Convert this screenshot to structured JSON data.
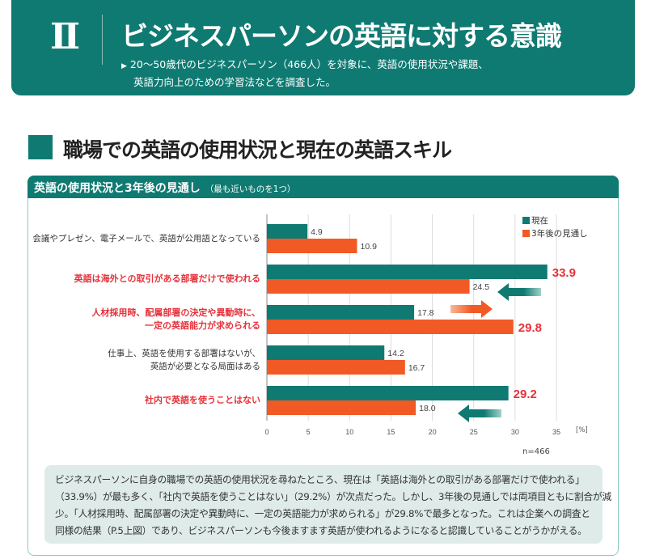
{
  "header": {
    "numeral": "Ⅱ",
    "title": "ビジネスパーソンの英語に対する意識",
    "subtitle_lines": [
      "20～50歳代のビジネスパーソン（466人）を対象に、英語の使用状況や課題、",
      "英語力向上のための学習法などを調査した。"
    ]
  },
  "section": {
    "title": "職場での英語の使用状況と現在の英語スキル"
  },
  "chart_box": {
    "title": "英語の使用状況と3年後の見通し",
    "note": "（最も近いものを1つ）"
  },
  "chart_data": {
    "type": "bar",
    "orientation": "horizontal",
    "categories": [
      {
        "lines": [
          "会議やプレゼン、電子メールで、英語が公用語となっている"
        ],
        "highlight": false
      },
      {
        "lines": [
          "英語は海外との取引がある部署だけで使われる"
        ],
        "highlight": true
      },
      {
        "lines": [
          "人材採用時、配属部署の決定や異動時に、",
          "一定の英語能力が求められる"
        ],
        "highlight": true
      },
      {
        "lines": [
          "仕事上、英語を使用する部署はないが、",
          "英語が必要となる局面はある"
        ],
        "highlight": false
      },
      {
        "lines": [
          "社内で英語を使うことはない"
        ],
        "highlight": true
      }
    ],
    "series": [
      {
        "name": "現在",
        "color": "#0f7a72",
        "values": [
          4.9,
          33.9,
          17.8,
          14.2,
          29.2
        ],
        "labels": [
          "4.9",
          "33.9",
          "17.8",
          "14.2",
          "29.2"
        ],
        "emphasized": [
          false,
          true,
          false,
          false,
          true
        ]
      },
      {
        "name": "3年後の見通し",
        "color": "#f15a24",
        "values": [
          10.9,
          24.5,
          29.8,
          16.7,
          18.0
        ],
        "labels": [
          "10.9",
          "24.5",
          "29.8",
          "16.7",
          "18.0"
        ],
        "emphasized": [
          false,
          false,
          true,
          false,
          false
        ]
      }
    ],
    "xlim": [
      0,
      35
    ],
    "xticks": [
      "0",
      "5",
      "10",
      "15",
      "20",
      "25",
      "30",
      "35"
    ],
    "xunit": "[%]",
    "grid": true,
    "legend": "top-right",
    "highlight_color": "#e5323b",
    "sample_size": "n=466"
  },
  "summary_lines": [
    "ビジネスパーソンに自身の職場での英語の使用状況を尋ねたところ、現在は「英語は海外との取引がある部署だけで使われる」",
    "（33.9%）が最も多く、「社内で英語を使うことはない」（29.2%）が次点だった。しかし、3年後の見通しでは両項目ともに割合が減",
    "少。「人材採用時、配属部署の決定や異動時に、一定の英語能力が求められる」が29.8%で最多となった。これは企業への調査と",
    "同様の結果（P.5上図）であり、ビジネスパーソンも今後ますます英語が使われるようになると認識していることがうかがえる。"
  ]
}
